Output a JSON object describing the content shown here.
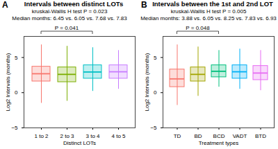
{
  "chart_data": [
    {
      "type": "box",
      "panel_label": "A",
      "title": "Intervals between distinct LOTs",
      "subtitle": [
        "kruskal-Wallis H test P = 0.023",
        "Median months: 6.45 vs. 6.05 vs. 7.68 vs. 7.83"
      ],
      "xlabel": "Distinct LOTs",
      "ylabel": "Log2 Intervals (months)",
      "categories": [
        "1 to 2",
        "2 to 3",
        "3 to 4",
        "4 to 5"
      ],
      "colors": [
        "#F8766D",
        "#7CAE00",
        "#00BFC4",
        "#C77CFF"
      ],
      "min": [
        -1.5,
        -1.2,
        0.2,
        0.5
      ],
      "q1": [
        1.6,
        1.5,
        2.0,
        2.0
      ],
      "median": [
        2.69,
        2.6,
        2.94,
        2.97
      ],
      "q3": [
        3.7,
        3.6,
        3.9,
        3.9
      ],
      "max": [
        6.8,
        6.6,
        6.4,
        6.0
      ],
      "comparisons": [
        {
          "groups": [
            "1 to 2",
            "3 to 4"
          ],
          "label": "P = 0.041"
        }
      ],
      "ylim": [
        -5,
        8
      ],
      "yticks": [
        -5,
        0,
        5
      ]
    },
    {
      "type": "box",
      "panel_label": "B",
      "title": "Intervals between the 1st and 2nd LOT",
      "subtitle": [
        "kruskal-Wallis H test P = 0.005",
        "Median months: 3.88 vs. 6.05 vs. 8.25 vs. 7.83 vs. 6.93"
      ],
      "xlabel": "Treatment types",
      "ylabel": "Log2 Intervals (months)",
      "categories": [
        "TD",
        "BD",
        "BCD",
        "VADT",
        "BTD"
      ],
      "colors": [
        "#F8766D",
        "#A3A500",
        "#00BF7D",
        "#00B0F6",
        "#E76BF3"
      ],
      "min": [
        -1.8,
        -0.5,
        0.8,
        0.5,
        0.3
      ],
      "q1": [
        0.8,
        1.6,
        2.2,
        2.0,
        1.8
      ],
      "median": [
        1.96,
        2.6,
        3.04,
        2.97,
        2.79
      ],
      "q3": [
        3.3,
        3.6,
        3.9,
        3.9,
        3.8
      ],
      "max": [
        6.8,
        6.5,
        6.0,
        6.2,
        6.0
      ],
      "comparisons": [
        {
          "groups": [
            "TD",
            "BCD"
          ],
          "label": "P = 0.048"
        }
      ],
      "ylim": [
        -5,
        8
      ],
      "yticks": [
        -5,
        0,
        5
      ]
    }
  ]
}
